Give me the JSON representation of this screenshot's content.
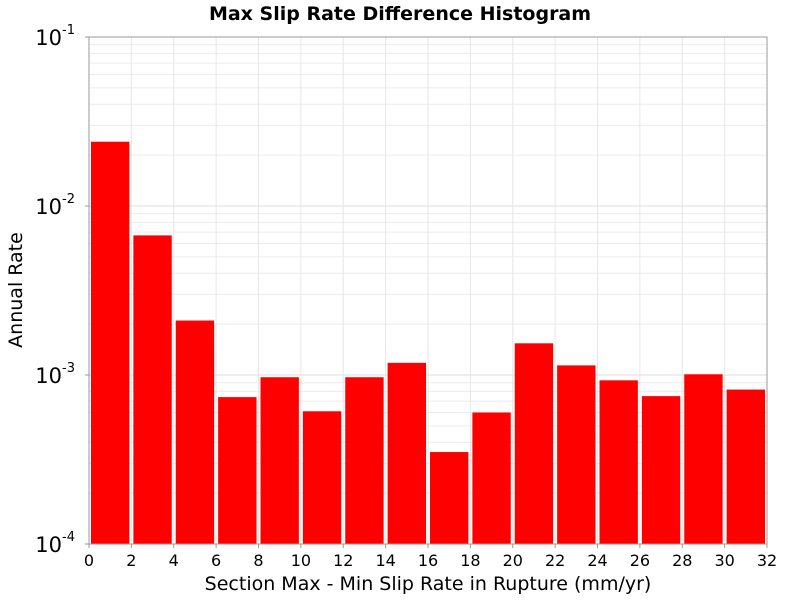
{
  "chart_data": {
    "type": "bar",
    "title": "Max Slip Rate Difference Histogram",
    "xlabel": "Section Max - Min Slip Rate in Rupture (mm/yr)",
    "ylabel": "Annual Rate",
    "xlim": [
      0,
      32
    ],
    "ylim": [
      0.0001,
      0.1
    ],
    "yscale": "log",
    "grid": true,
    "bin_width": 2,
    "x_ticks": [
      "0",
      "2",
      "4",
      "6",
      "8",
      "10",
      "12",
      "14",
      "16",
      "18",
      "20",
      "22",
      "24",
      "26",
      "28",
      "30",
      "32"
    ],
    "y_ticks": [
      {
        "base": "10",
        "exp": "-1",
        "value": 0.1
      },
      {
        "base": "10",
        "exp": "-2",
        "value": 0.01
      },
      {
        "base": "10",
        "exp": "-3",
        "value": 0.001
      },
      {
        "base": "10",
        "exp": "-4",
        "value": 0.0001
      }
    ],
    "bar_color": "#ff0000",
    "bins": [
      {
        "x": 1,
        "value": 0.024
      },
      {
        "x": 3,
        "value": 0.0067
      },
      {
        "x": 5,
        "value": 0.0021
      },
      {
        "x": 7,
        "value": 0.00074
      },
      {
        "x": 9,
        "value": 0.00097
      },
      {
        "x": 11,
        "value": 0.00061
      },
      {
        "x": 13,
        "value": 0.00097
      },
      {
        "x": 15,
        "value": 0.00118
      },
      {
        "x": 17,
        "value": 0.00035
      },
      {
        "x": 19,
        "value": 0.0006
      },
      {
        "x": 21,
        "value": 0.00154
      },
      {
        "x": 23,
        "value": 0.00114
      },
      {
        "x": 25,
        "value": 0.00093
      },
      {
        "x": 27,
        "value": 0.00075
      },
      {
        "x": 29,
        "value": 0.00101
      },
      {
        "x": 31,
        "value": 0.00082
      }
    ]
  }
}
